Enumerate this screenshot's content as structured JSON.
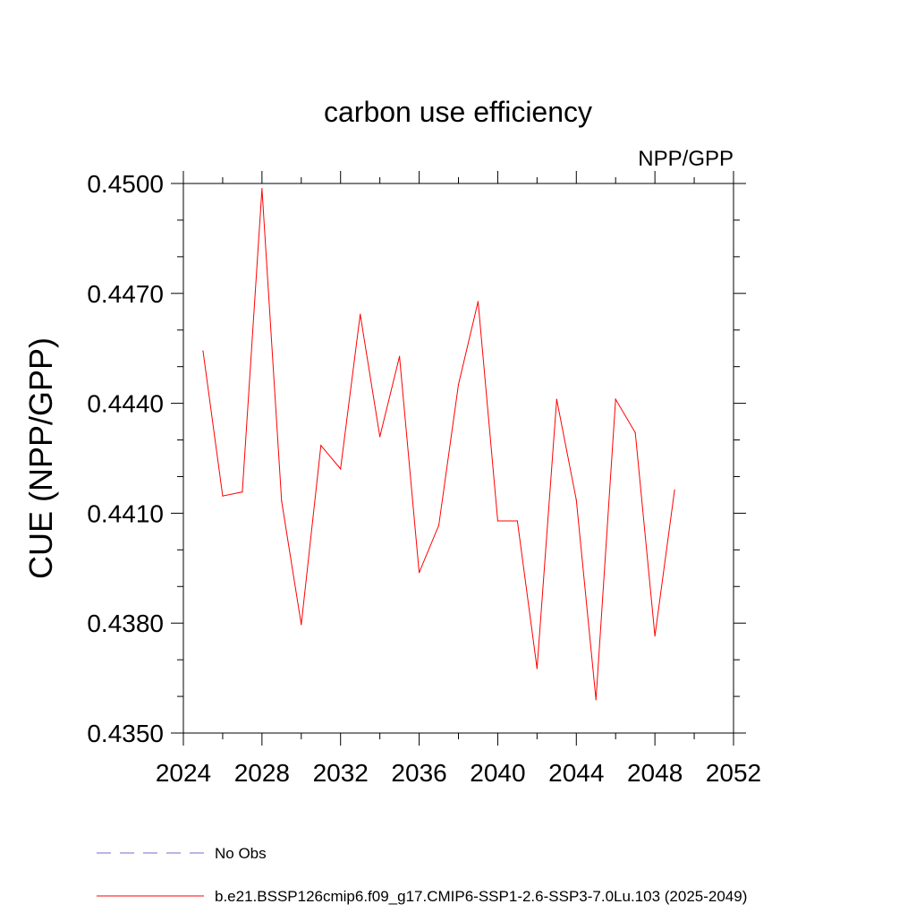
{
  "chart_data": {
    "type": "line",
    "title": "carbon use efficiency",
    "subtitle": "NPP/GPP",
    "xlabel": "",
    "ylabel": "CUE  (NPP/GPP)",
    "xlim": [
      2024,
      2052
    ],
    "ylim": [
      0.435,
      0.45
    ],
    "x_ticks": [
      2024,
      2028,
      2032,
      2036,
      2040,
      2044,
      2048,
      2052
    ],
    "x_tick_labels": [
      "2024",
      "2028",
      "2032",
      "2036",
      "2040",
      "2044",
      "2048",
      "2052"
    ],
    "x_minor_step": 2,
    "y_ticks": [
      0.435,
      0.438,
      0.441,
      0.444,
      0.447,
      0.45
    ],
    "y_tick_labels": [
      "0.4350",
      "0.4380",
      "0.4410",
      "0.4440",
      "0.4470",
      "0.4500"
    ],
    "y_minor_step": 0.001,
    "grid": false,
    "series": [
      {
        "name": "No Obs",
        "color": "#7b68c9",
        "dash": "dashed",
        "x": [],
        "values": []
      },
      {
        "name": "b.e21.BSSP126cmip6.f09_g17.CMIP6-SSP1-2.6-SSP3-7.0Lu.103 (2025-2049)",
        "color": "#ff0000",
        "dash": "solid",
        "x": [
          2025,
          2026,
          2027,
          2028,
          2029,
          2030,
          2031,
          2032,
          2033,
          2034,
          2035,
          2036,
          2037,
          2038,
          2039,
          2040,
          2041,
          2042,
          2043,
          2044,
          2045,
          2046,
          2047,
          2048,
          2049
        ],
        "values": [
          0.44543,
          0.44147,
          0.44158,
          0.44986,
          0.44133,
          0.43796,
          0.44285,
          0.44221,
          0.44643,
          0.44309,
          0.44528,
          0.43938,
          0.44067,
          0.44451,
          0.44678,
          0.44079,
          0.44079,
          0.43676,
          0.44411,
          0.44136,
          0.43591,
          0.44411,
          0.4432,
          0.43765,
          0.44163
        ]
      }
    ],
    "legend": [
      {
        "label": "No Obs",
        "color": "#7b68c9",
        "dash": "dashed"
      },
      {
        "label": "b.e21.BSSP126cmip6.f09_g17.CMIP6-SSP1-2.6-SSP3-7.0Lu.103 (2025-2049)",
        "color": "#ff0000",
        "dash": "solid"
      }
    ],
    "legend_position": "bottom-left"
  }
}
